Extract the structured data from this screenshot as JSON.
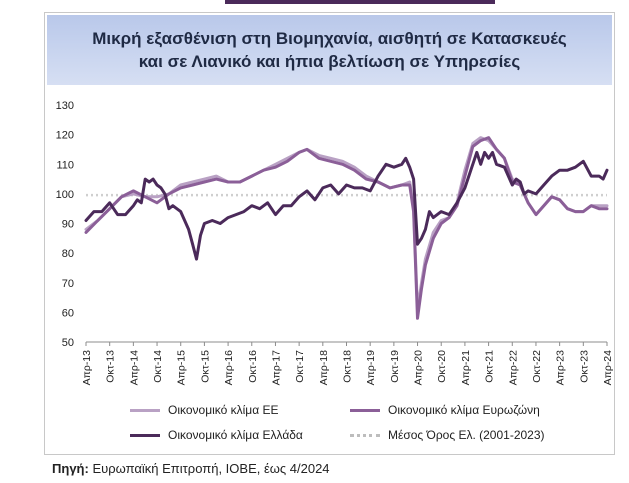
{
  "source": {
    "label": "Πηγή:",
    "text": "Ευρωπαϊκή Επιτροπή, ΙΟΒΕ, έως 4/2024"
  },
  "chart_data": {
    "type": "line",
    "title": "Μικρή εξασθένιση στη Βιομηχανία, αισθητή σε Κατασκευές και σε Λιανικό και ήπια βελτίωση σε Υπηρεσίες",
    "title_lines": [
      "Μικρή εξασθένιση στη Βιομηχανία, αισθητή σε Κατασκευές",
      "και σε Λιανικό και ήπια βελτίωση σε Υπηρεσίες"
    ],
    "ylim": [
      50,
      130
    ],
    "yticks": [
      50,
      60,
      70,
      80,
      90,
      100,
      110,
      120,
      130
    ],
    "x_start": "2013-04",
    "x_end": "2024-04",
    "xtick_labels": [
      "Απρ-13",
      "Οκτ-13",
      "Απρ-14",
      "Οκτ-14",
      "Απρ-15",
      "Οκτ-15",
      "Απρ-16",
      "Οκτ-16",
      "Απρ-17",
      "Οκτ-17",
      "Απρ-18",
      "Οκτ-18",
      "Απρ-19",
      "Οκτ-19",
      "Απρ-20",
      "Οκτ-20",
      "Απρ-21",
      "Οκτ-21",
      "Απρ-22",
      "Οκτ-22",
      "Απρ-23",
      "Οκτ-23",
      "Απρ-24"
    ],
    "grid": false,
    "legend_position": "bottom",
    "series": [
      {
        "name": "Οικονομικό κλίμα ΕΕ",
        "color": "#b9a1c4",
        "width": 3,
        "points": [
          [
            "2013-04",
            88
          ],
          [
            "2013-07",
            91
          ],
          [
            "2013-10",
            95
          ],
          [
            "2014-01",
            99
          ],
          [
            "2014-04",
            100
          ],
          [
            "2014-07",
            99
          ],
          [
            "2014-10",
            99
          ],
          [
            "2015-01",
            100
          ],
          [
            "2015-04",
            103
          ],
          [
            "2015-07",
            104
          ],
          [
            "2015-10",
            105
          ],
          [
            "2016-01",
            106
          ],
          [
            "2016-04",
            104
          ],
          [
            "2016-07",
            104
          ],
          [
            "2016-10",
            106
          ],
          [
            "2017-01",
            108
          ],
          [
            "2017-04",
            110
          ],
          [
            "2017-07",
            112
          ],
          [
            "2017-10",
            114
          ],
          [
            "2017-12",
            115
          ],
          [
            "2018-03",
            113
          ],
          [
            "2018-06",
            112
          ],
          [
            "2018-09",
            111
          ],
          [
            "2018-12",
            109
          ],
          [
            "2019-03",
            106
          ],
          [
            "2019-06",
            104
          ],
          [
            "2019-09",
            102
          ],
          [
            "2019-12",
            103
          ],
          [
            "2020-02",
            104
          ],
          [
            "2020-03",
            95
          ],
          [
            "2020-04",
            61
          ],
          [
            "2020-05",
            70
          ],
          [
            "2020-06",
            78
          ],
          [
            "2020-08",
            87
          ],
          [
            "2020-10",
            91
          ],
          [
            "2020-12",
            92
          ],
          [
            "2021-02",
            97
          ],
          [
            "2021-04",
            108
          ],
          [
            "2021-06",
            117
          ],
          [
            "2021-08",
            119
          ],
          [
            "2021-10",
            118
          ],
          [
            "2021-12",
            115
          ],
          [
            "2022-02",
            112
          ],
          [
            "2022-04",
            105
          ],
          [
            "2022-06",
            103
          ],
          [
            "2022-08",
            97
          ],
          [
            "2022-10",
            93
          ],
          [
            "2022-12",
            96
          ],
          [
            "2023-02",
            99
          ],
          [
            "2023-04",
            98
          ],
          [
            "2023-06",
            95
          ],
          [
            "2023-08",
            94
          ],
          [
            "2023-10",
            94
          ],
          [
            "2023-12",
            96
          ],
          [
            "2024-02",
            96
          ],
          [
            "2024-04",
            96
          ]
        ]
      },
      {
        "name": "Οικονομικό κλίμα Ευρωζώνη",
        "color": "#8b5f98",
        "width": 3,
        "points": [
          [
            "2013-04",
            87
          ],
          [
            "2013-07",
            91
          ],
          [
            "2013-10",
            95
          ],
          [
            "2014-01",
            99
          ],
          [
            "2014-04",
            101
          ],
          [
            "2014-07",
            99
          ],
          [
            "2014-10",
            97
          ],
          [
            "2015-01",
            100
          ],
          [
            "2015-04",
            102
          ],
          [
            "2015-07",
            103
          ],
          [
            "2015-10",
            104
          ],
          [
            "2016-01",
            105
          ],
          [
            "2016-04",
            104
          ],
          [
            "2016-07",
            104
          ],
          [
            "2016-10",
            106
          ],
          [
            "2017-01",
            108
          ],
          [
            "2017-04",
            109
          ],
          [
            "2017-07",
            111
          ],
          [
            "2017-10",
            114
          ],
          [
            "2017-12",
            115
          ],
          [
            "2018-03",
            112
          ],
          [
            "2018-06",
            111
          ],
          [
            "2018-09",
            110
          ],
          [
            "2018-12",
            108
          ],
          [
            "2019-03",
            105
          ],
          [
            "2019-06",
            104
          ],
          [
            "2019-09",
            102
          ],
          [
            "2019-12",
            103
          ],
          [
            "2020-02",
            103
          ],
          [
            "2020-03",
            94
          ],
          [
            "2020-04",
            58
          ],
          [
            "2020-05",
            68
          ],
          [
            "2020-06",
            76
          ],
          [
            "2020-08",
            85
          ],
          [
            "2020-10",
            90
          ],
          [
            "2020-12",
            92
          ],
          [
            "2021-02",
            96
          ],
          [
            "2021-04",
            106
          ],
          [
            "2021-06",
            116
          ],
          [
            "2021-08",
            118
          ],
          [
            "2021-10",
            119
          ],
          [
            "2021-12",
            115
          ],
          [
            "2022-02",
            112
          ],
          [
            "2022-04",
            104
          ],
          [
            "2022-06",
            103
          ],
          [
            "2022-08",
            97
          ],
          [
            "2022-10",
            93
          ],
          [
            "2022-12",
            96
          ],
          [
            "2023-02",
            99
          ],
          [
            "2023-04",
            98
          ],
          [
            "2023-06",
            95
          ],
          [
            "2023-08",
            94
          ],
          [
            "2023-10",
            94
          ],
          [
            "2023-12",
            96
          ],
          [
            "2024-02",
            95
          ],
          [
            "2024-04",
            95
          ]
        ]
      },
      {
        "name": "Οικονομικό κλίμα Ελλάδα",
        "color": "#4b2a5a",
        "width": 3,
        "points": [
          [
            "2013-04",
            91
          ],
          [
            "2013-06",
            94
          ],
          [
            "2013-08",
            94
          ],
          [
            "2013-10",
            97
          ],
          [
            "2013-12",
            93
          ],
          [
            "2014-02",
            93
          ],
          [
            "2014-04",
            96
          ],
          [
            "2014-05",
            98
          ],
          [
            "2014-06",
            97
          ],
          [
            "2014-07",
            105
          ],
          [
            "2014-08",
            104
          ],
          [
            "2014-09",
            105
          ],
          [
            "2014-10",
            103
          ],
          [
            "2014-11",
            102
          ],
          [
            "2014-12",
            100
          ],
          [
            "2015-01",
            95
          ],
          [
            "2015-02",
            96
          ],
          [
            "2015-04",
            94
          ],
          [
            "2015-06",
            88
          ],
          [
            "2015-07",
            83
          ],
          [
            "2015-08",
            78
          ],
          [
            "2015-09",
            86
          ],
          [
            "2015-10",
            90
          ],
          [
            "2015-12",
            91
          ],
          [
            "2016-02",
            90
          ],
          [
            "2016-04",
            92
          ],
          [
            "2016-06",
            93
          ],
          [
            "2016-08",
            94
          ],
          [
            "2016-10",
            96
          ],
          [
            "2016-12",
            95
          ],
          [
            "2017-02",
            97
          ],
          [
            "2017-04",
            93
          ],
          [
            "2017-06",
            96
          ],
          [
            "2017-08",
            96
          ],
          [
            "2017-10",
            99
          ],
          [
            "2017-12",
            101
          ],
          [
            "2018-02",
            98
          ],
          [
            "2018-04",
            102
          ],
          [
            "2018-06",
            103
          ],
          [
            "2018-08",
            100
          ],
          [
            "2018-10",
            103
          ],
          [
            "2018-12",
            102
          ],
          [
            "2019-02",
            102
          ],
          [
            "2019-04",
            101
          ],
          [
            "2019-06",
            106
          ],
          [
            "2019-08",
            110
          ],
          [
            "2019-10",
            109
          ],
          [
            "2019-12",
            110
          ],
          [
            "2020-01",
            112
          ],
          [
            "2020-02",
            109
          ],
          [
            "2020-03",
            105
          ],
          [
            "2020-04",
            83
          ],
          [
            "2020-05",
            85
          ],
          [
            "2020-06",
            88
          ],
          [
            "2020-07",
            94
          ],
          [
            "2020-08",
            92
          ],
          [
            "2020-10",
            94
          ],
          [
            "2020-12",
            93
          ],
          [
            "2021-02",
            97
          ],
          [
            "2021-04",
            102
          ],
          [
            "2021-06",
            110
          ],
          [
            "2021-07",
            114
          ],
          [
            "2021-08",
            110
          ],
          [
            "2021-09",
            114
          ],
          [
            "2021-10",
            112
          ],
          [
            "2021-11",
            114
          ],
          [
            "2021-12",
            110
          ],
          [
            "2022-02",
            109
          ],
          [
            "2022-04",
            103
          ],
          [
            "2022-05",
            105
          ],
          [
            "2022-06",
            104
          ],
          [
            "2022-07",
            100
          ],
          [
            "2022-08",
            101
          ],
          [
            "2022-10",
            100
          ],
          [
            "2022-12",
            103
          ],
          [
            "2023-02",
            106
          ],
          [
            "2023-04",
            108
          ],
          [
            "2023-06",
            108
          ],
          [
            "2023-08",
            109
          ],
          [
            "2023-10",
            111
          ],
          [
            "2023-12",
            106
          ],
          [
            "2024-02",
            106
          ],
          [
            "2024-03",
            105
          ],
          [
            "2024-04",
            108
          ]
        ]
      },
      {
        "name": "Μέσος Όρος Ελ. (2001-2023)",
        "color": "#cfcfcf",
        "width": 2.5,
        "dashed": true,
        "points": [
          [
            "2013-04",
            99.6
          ],
          [
            "2024-04",
            99.6
          ]
        ]
      }
    ]
  }
}
